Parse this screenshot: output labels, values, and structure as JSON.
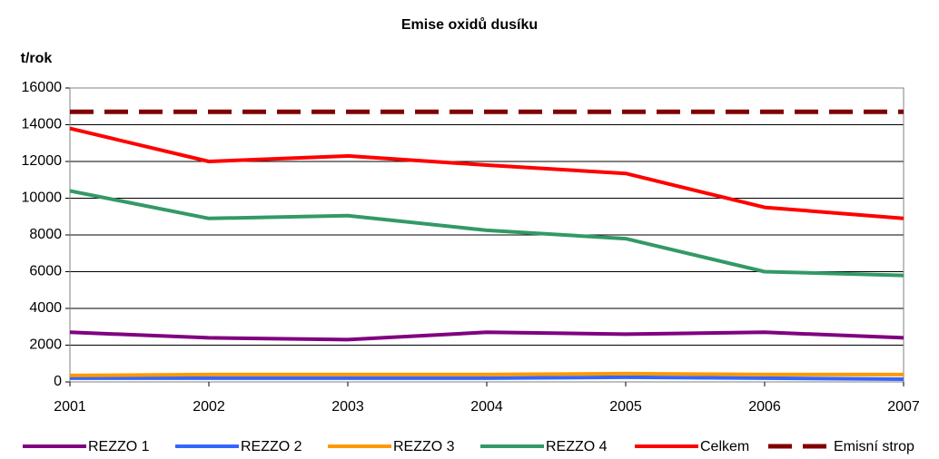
{
  "chart_data": {
    "type": "line",
    "title": "Emise oxidů dusíku",
    "y_label": "t/rok",
    "categories": [
      "2001",
      "2002",
      "2003",
      "2004",
      "2005",
      "2006",
      "2007"
    ],
    "series": [
      {
        "name": "REZZO 1",
        "color": "#800080",
        "values": [
          2700,
          2400,
          2300,
          2700,
          2600,
          2700,
          2400
        ]
      },
      {
        "name": "REZZO 2",
        "color": "#3366ff",
        "values": [
          200,
          200,
          200,
          200,
          250,
          200,
          150
        ]
      },
      {
        "name": "REZZO 3",
        "color": "#ff9900",
        "values": [
          350,
          400,
          400,
          400,
          450,
          400,
          400
        ]
      },
      {
        "name": "REZZO 4",
        "color": "#339966",
        "values": [
          10400,
          8900,
          9050,
          8250,
          7800,
          6000,
          5800
        ]
      },
      {
        "name": "Celkem",
        "color": "#ff0000",
        "values": [
          13800,
          12000,
          12300,
          11800,
          11350,
          9500,
          8900
        ]
      },
      {
        "name": "Emisní strop",
        "color": "#800000",
        "dashed": true,
        "values": [
          14700,
          14700,
          14700,
          14700,
          14700,
          14700,
          14700
        ]
      }
    ],
    "ylim": [
      0,
      16000
    ],
    "yticks": [
      0,
      2000,
      4000,
      6000,
      8000,
      10000,
      12000,
      14000,
      16000
    ],
    "grid": true,
    "legend": "bottom"
  }
}
